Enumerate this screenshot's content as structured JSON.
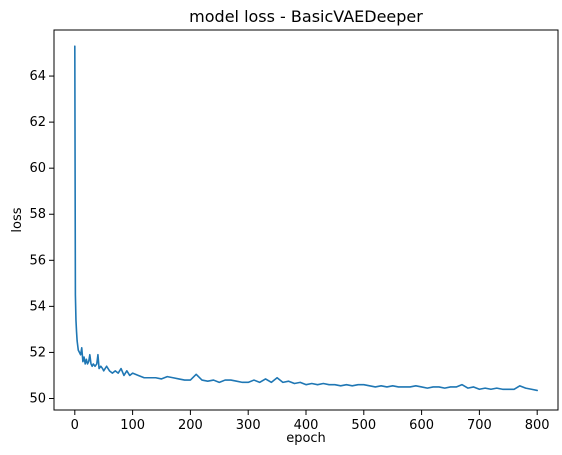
{
  "chart_data": {
    "type": "line",
    "title": "model loss - BasicVAEDeeper",
    "xlabel": "epoch",
    "ylabel": "loss",
    "xlim": [
      -36,
      836
    ],
    "ylim": [
      49.5,
      66.0
    ],
    "x_ticks": [
      0,
      100,
      200,
      300,
      400,
      500,
      600,
      700,
      800
    ],
    "y_ticks": [
      50,
      52,
      54,
      56,
      58,
      60,
      62,
      64
    ],
    "grid": false,
    "legend": "none",
    "line_color": "#1f77b4",
    "series": [
      {
        "x": [
          0,
          1,
          2,
          3,
          4,
          5,
          6,
          8,
          10,
          12,
          14,
          16,
          18,
          20,
          22,
          24,
          26,
          28,
          30,
          32,
          35,
          38,
          40,
          42,
          45,
          48,
          50,
          55,
          60,
          65,
          70,
          75,
          80,
          85,
          90,
          95,
          100,
          110,
          120,
          130,
          140,
          150,
          160,
          170,
          180,
          190,
          200,
          210,
          220,
          230,
          240,
          250,
          260,
          270,
          280,
          290,
          300,
          310,
          320,
          330,
          340,
          350,
          360,
          370,
          380,
          390,
          400,
          410,
          420,
          430,
          440,
          450,
          460,
          470,
          480,
          490,
          500,
          510,
          520,
          530,
          540,
          550,
          560,
          570,
          580,
          590,
          600,
          610,
          620,
          630,
          640,
          650,
          660,
          670,
          680,
          690,
          700,
          710,
          720,
          730,
          740,
          750,
          760,
          770,
          780,
          790,
          800
        ],
        "y": [
          65.3,
          54.5,
          53.4,
          52.9,
          52.5,
          52.3,
          52.1,
          52.0,
          51.9,
          52.2,
          51.6,
          51.8,
          51.5,
          51.7,
          51.5,
          51.6,
          51.9,
          51.5,
          51.4,
          51.5,
          51.4,
          51.5,
          51.9,
          51.3,
          51.4,
          51.3,
          51.2,
          51.4,
          51.2,
          51.1,
          51.2,
          51.1,
          51.3,
          51.0,
          51.2,
          51.0,
          51.1,
          51.0,
          50.9,
          50.9,
          50.9,
          50.85,
          50.95,
          50.9,
          50.85,
          50.8,
          50.8,
          51.05,
          50.8,
          50.75,
          50.8,
          50.7,
          50.8,
          50.8,
          50.75,
          50.7,
          50.7,
          50.8,
          50.7,
          50.85,
          50.7,
          50.9,
          50.7,
          50.75,
          50.65,
          50.7,
          50.6,
          50.65,
          50.6,
          50.65,
          50.6,
          50.6,
          50.55,
          50.6,
          50.55,
          50.6,
          50.6,
          50.55,
          50.5,
          50.55,
          50.5,
          50.55,
          50.5,
          50.5,
          50.5,
          50.55,
          50.5,
          50.45,
          50.5,
          50.5,
          50.45,
          50.5,
          50.5,
          50.6,
          50.45,
          50.5,
          50.4,
          50.45,
          50.4,
          50.45,
          50.4,
          50.4,
          50.4,
          50.55,
          50.45,
          50.4,
          50.35
        ]
      }
    ]
  }
}
